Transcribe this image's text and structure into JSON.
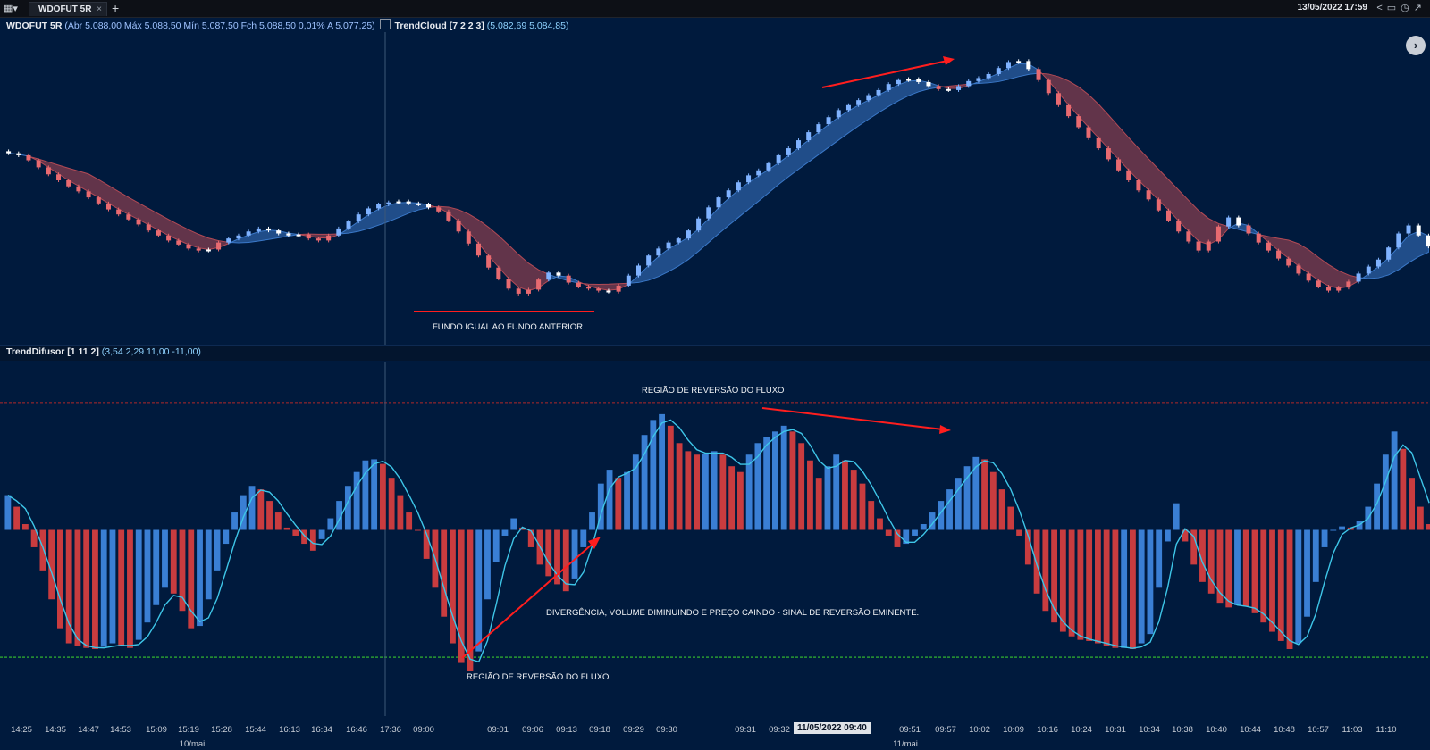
{
  "header": {
    "tab_label": "WDOFUT 5R",
    "tab_close": "×",
    "new_tab": "+",
    "datetime": "13/05/2022 17:59",
    "tool_icons": [
      "share-icon",
      "window-icon",
      "clock-icon",
      "chart-icon"
    ]
  },
  "price_panel": {
    "label": "WDOFUT 5R",
    "ohlc": "(Abr 5.088,00 Máx 5.088,50 Mín 5.087,50 Fch 5.088,50 0,01%  A 5.077,25)",
    "indicator_name": "TrendCloud [7 2 2 3]",
    "indicator_values": "(5.082,69 5.084,85)",
    "annotation": "FUNDO IGUAL AO FUNDO ANTERIOR",
    "colors": {
      "up_cloud": "#3a78c8",
      "down_cloud": "#b24a55",
      "background": "#001a3d"
    }
  },
  "osc_panel": {
    "label": "TrendDifusor [1 11 2]",
    "values": "(3,54 2,29 11,00 -11,00)",
    "annotations": [
      "REGIÃO DE REVERSÃO DO FLUXO",
      "DIVERGÊNCIA, VOLUME DIMINUINDO E PREÇO CAINDO - SINAL DE REVERSÃO EMINENTE.",
      "REGIÃO DE REVERSÃO DO FLUXO"
    ],
    "colors": {
      "positive": "#3a7fd4",
      "negative": "#c93c3f",
      "signal": "#3ec6e8",
      "upper_line": "#b02828",
      "lower_line": "#2a9a32"
    }
  },
  "time_axis": {
    "ticks": [
      "14:25",
      "14:35",
      "14:47",
      "14:53",
      "15:09",
      "15:19",
      "15:28",
      "15:44",
      "16:13",
      "16:34",
      "16:46",
      "17:36",
      "09:00",
      "09:01",
      "09:06",
      "09:13",
      "09:18",
      "09:29",
      "09:30",
      "09:31",
      "09:32",
      "09:51",
      "09:57",
      "10:02",
      "10:09",
      "10:16",
      "10:24",
      "10:31",
      "10:34",
      "10:38",
      "10:40",
      "10:44",
      "10:48",
      "10:57",
      "11:03",
      "11:10"
    ],
    "highlight": "11/05/2022 09:40",
    "days": [
      "10/mai",
      "11/mai"
    ]
  },
  "chart_data": [
    {
      "type": "candlestick",
      "title": "WDOFUT 5R",
      "close": [
        5057,
        5055,
        5050,
        5043,
        5036,
        5030,
        5024,
        5019,
        5013,
        5007,
        5001,
        4996,
        4991,
        4986,
        4980,
        4975,
        4970,
        4966,
        4962,
        4960,
        4961,
        4968,
        4972,
        4975,
        4979,
        4982,
        4980,
        4977,
        4975,
        4976,
        4972,
        4970,
        4975,
        4982,
        4989,
        4996,
        5002,
        5006,
        5008,
        5009,
        5007,
        5006,
        5003,
        4999,
        4990,
        4979,
        4967,
        4955,
        4943,
        4932,
        4922,
        4917,
        4921,
        4931,
        4938,
        4935,
        4928,
        4924,
        4922,
        4920,
        4919,
        4925,
        4935,
        4945,
        4955,
        4962,
        4968,
        4972,
        4980,
        4992,
        5003,
        5013,
        5020,
        5028,
        5035,
        5040,
        5047,
        5055,
        5062,
        5070,
        5078,
        5086,
        5093,
        5100,
        5105,
        5110,
        5115,
        5120,
        5126,
        5130,
        5131,
        5128,
        5124,
        5121,
        5120,
        5124,
        5129,
        5132,
        5136,
        5142,
        5148,
        5149,
        5141,
        5130,
        5117,
        5105,
        5094,
        5083,
        5072,
        5062,
        5051,
        5040,
        5030,
        5020,
        5011,
        5000,
        4990,
        4979,
        4969,
        4960,
        4969,
        4984,
        4993,
        4985,
        4977,
        4968,
        4960,
        4952,
        4945,
        4937,
        4930,
        4924,
        4920,
        4923,
        4929,
        4937,
        4944,
        4951,
        4963,
        4977,
        4985,
        4975,
        4964
      ],
      "clouds": [
        "down",
        "up",
        "down",
        "up",
        "down",
        "up",
        "down",
        "up",
        "down",
        "up"
      ],
      "ylim": [
        4900,
        5160
      ]
    },
    {
      "type": "bar",
      "title": "TrendDifusor [1 11 2]",
      "series": [
        {
          "name": "",
          "values": [
            3,
            2,
            0.5,
            -1.5,
            -3.5,
            -6,
            -8.5,
            -9.8,
            -10,
            -10.2,
            -10.3,
            -10.1,
            -9.8,
            -10,
            -10.2,
            -9.5,
            -8,
            -6.5,
            -5,
            -5.5,
            -7,
            -8.5,
            -8.3,
            -6,
            -3.5,
            -1.2,
            1.5,
            3,
            3.8,
            3.5,
            2.5,
            1.5,
            0.2,
            -0.5,
            -1.2,
            -1.8,
            -0.8,
            1,
            2.5,
            3.8,
            5,
            6,
            6.1,
            5.7,
            4.5,
            3,
            1.5,
            0,
            -2.5,
            -5,
            -7.5,
            -9.8,
            -11.5,
            -12.2,
            -10.5,
            -6,
            -2.8,
            -0.5,
            1,
            0.2,
            -1.5,
            -3,
            -4,
            -4.7,
            -5.3,
            -4.2,
            -1.5,
            1.5,
            4,
            5.2,
            4.5,
            5,
            6.5,
            8.2,
            9.5,
            10,
            9,
            7.5,
            6.8,
            6.5,
            6.6,
            6.8,
            6.5,
            5.5,
            5,
            6.5,
            7.5,
            8,
            8.5,
            9,
            8.5,
            7.5,
            6,
            4.5,
            5.5,
            6.5,
            6,
            5.2,
            4,
            2.5,
            1,
            -0.5,
            -1.5,
            -1.2,
            -0.5,
            0.5,
            1.5,
            2.5,
            3.5,
            4.5,
            5.5,
            6.3,
            6.1,
            5,
            3.5,
            2,
            -0.5,
            -3,
            -5.5,
            -7,
            -8,
            -8.8,
            -9.2,
            -9.5,
            -9.6,
            -9.8,
            -10,
            -10.2,
            -10.2,
            -10.3,
            -9.8,
            -9,
            -5,
            -1,
            2.3,
            -1,
            -3,
            -4.5,
            -5.5,
            -6.3,
            -6.7,
            -6.5,
            -6.6,
            -7.2,
            -8,
            -8.8,
            -9.6,
            -10.3,
            -9.8,
            -7.5,
            -4.5,
            -1.5,
            0,
            0.3,
            0.2,
            0.8,
            2,
            4,
            6.5,
            8.5,
            7,
            4.5,
            2,
            0.5
          ]
        }
      ],
      "signal": "smoothed line",
      "upper_level": 11.0,
      "lower_level": -11.0,
      "ylim": [
        -13,
        13
      ]
    }
  ]
}
